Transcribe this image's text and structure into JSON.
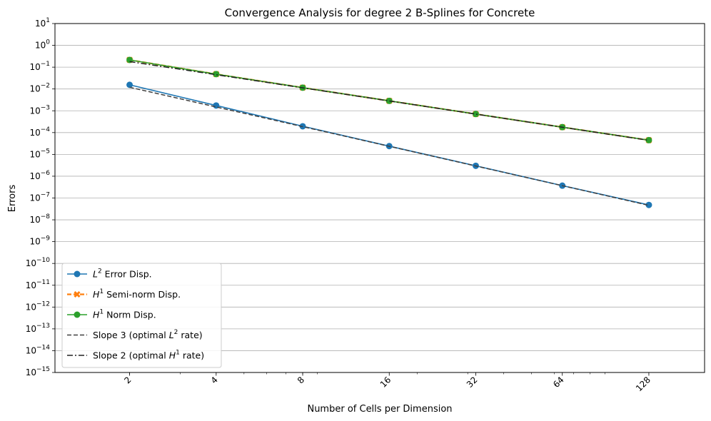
{
  "chart_data": {
    "type": "line",
    "title": "Convergence Analysis for degree 2 B-Splines for Concrete",
    "xlabel": "Number of Cells per Dimension",
    "ylabel": "Errors",
    "x_scale": "log2",
    "y_scale": "log10",
    "x_ticks": [
      2,
      4,
      8,
      16,
      32,
      64,
      128
    ],
    "x_tick_labels": [
      "2",
      "4",
      "8",
      "16",
      "32",
      "64",
      "128"
    ],
    "x_tick_rotation": 45,
    "xlim": [
      1.1,
      200
    ],
    "y_tick_exponents": [
      1,
      0,
      -1,
      -2,
      -3,
      -4,
      -5,
      -6,
      -7,
      -8,
      -9,
      -10,
      -11,
      -12,
      -13,
      -14,
      -15
    ],
    "y_tick_base": "10",
    "ylim": [
      1e-15,
      10
    ],
    "grid": "horizontal",
    "legend_position": "lower-left",
    "series": [
      {
        "name": "L2 Error Disp.",
        "legend_base": "L",
        "legend_sup": "2",
        "legend_rest": " Error Disp.",
        "color": "#1f77b4",
        "style": "solid",
        "marker": "circle",
        "x": [
          2,
          4,
          8,
          16,
          32,
          64,
          128
        ],
        "y": [
          0.0155,
          0.00175,
          0.000195,
          2.4e-05,
          3e-06,
          3.7e-07,
          4.8e-08
        ]
      },
      {
        "name": "H1 Semi-norm Disp.",
        "legend_base": "H",
        "legend_sup": "1",
        "legend_rest": " Semi-norm Disp.",
        "color": "#ff7f0e",
        "style": "dashed",
        "marker": "x",
        "x": [
          2,
          4,
          8,
          16,
          32,
          64,
          128
        ],
        "y": [
          0.215,
          0.048,
          0.0115,
          0.00285,
          0.00071,
          0.000178,
          4.5e-05
        ]
      },
      {
        "name": "H1 Norm Disp.",
        "legend_base": "H",
        "legend_sup": "1",
        "legend_rest": " Norm Disp.",
        "color": "#2ca02c",
        "style": "solid",
        "marker": "circle",
        "x": [
          2,
          4,
          8,
          16,
          32,
          64,
          128
        ],
        "y": [
          0.215,
          0.048,
          0.0115,
          0.00285,
          0.00071,
          0.000178,
          4.5e-05
        ]
      },
      {
        "name": "Slope 3 (optimal L2 rate)",
        "legend_base": "Slope 3 (optimal ",
        "legend_base2": "L",
        "legend_sup": "2",
        "legend_rest": " rate)",
        "color": "#404040",
        "style": "dashed",
        "marker": "none",
        "x": [
          2,
          128
        ],
        "y": [
          0.012,
          4.6e-08
        ]
      },
      {
        "name": "Slope 2 (optimal H1 rate)",
        "legend_base": "Slope 2 (optimal ",
        "legend_base2": "H",
        "legend_sup": "1",
        "legend_rest": " rate)",
        "color": "#202020",
        "style": "dashdot",
        "marker": "none",
        "x": [
          2,
          128
        ],
        "y": [
          0.18,
          4.4e-05
        ]
      }
    ]
  }
}
